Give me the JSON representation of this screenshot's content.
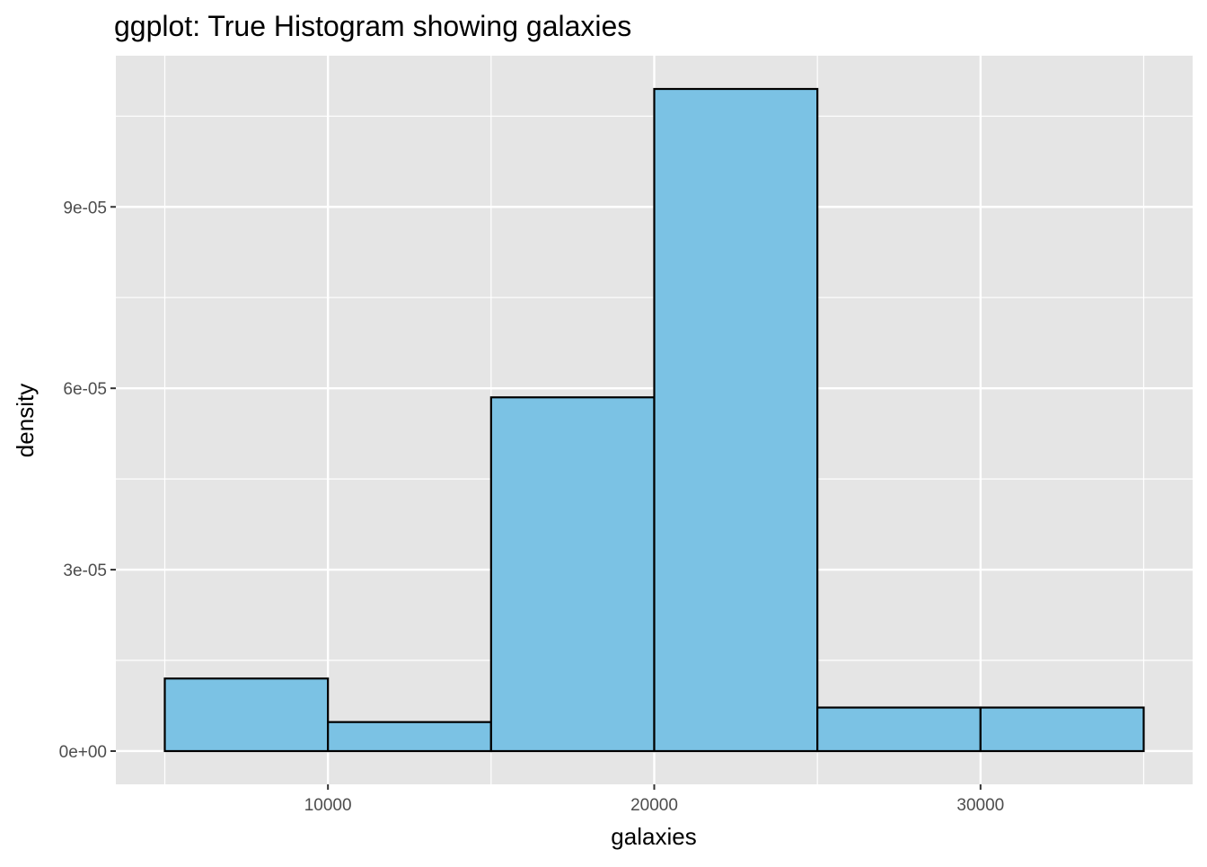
{
  "chart_data": {
    "type": "bar",
    "title": "ggplot: True Histogram showing galaxies",
    "xlabel": "galaxies",
    "ylabel": "density",
    "bins": [
      {
        "x_start": 5000,
        "x_end": 10000,
        "density": 1.2e-05
      },
      {
        "x_start": 10000,
        "x_end": 15000,
        "density": 4.8e-06
      },
      {
        "x_start": 15000,
        "x_end": 20000,
        "density": 5.85e-05
      },
      {
        "x_start": 20000,
        "x_end": 25000,
        "density": 0.0001095
      },
      {
        "x_start": 25000,
        "x_end": 30000,
        "density": 7.2e-06
      },
      {
        "x_start": 30000,
        "x_end": 35000,
        "density": 7.2e-06
      }
    ],
    "xlim": [
      3500,
      36500
    ],
    "ylim": [
      -5.5e-06,
      0.000115
    ],
    "x_ticks": [
      {
        "value": 10000,
        "label": "10000"
      },
      {
        "value": 20000,
        "label": "20000"
      },
      {
        "value": 30000,
        "label": "30000"
      }
    ],
    "x_minor": [
      5000,
      15000,
      25000,
      35000
    ],
    "y_ticks": [
      {
        "value": 0,
        "label": "0e+00"
      },
      {
        "value": 3e-05,
        "label": "3e-05"
      },
      {
        "value": 6e-05,
        "label": "6e-05"
      },
      {
        "value": 9e-05,
        "label": "9e-05"
      }
    ],
    "y_minor": [
      1.5e-05,
      4.5e-05,
      7.5e-05,
      0.000105
    ],
    "grid": true,
    "colors": {
      "panel_background": "#e5e5e5",
      "grid": "#ffffff",
      "bar_fill": "#7bc2e4",
      "bar_stroke": "#000000",
      "tick_text": "#4d4d4d"
    }
  }
}
